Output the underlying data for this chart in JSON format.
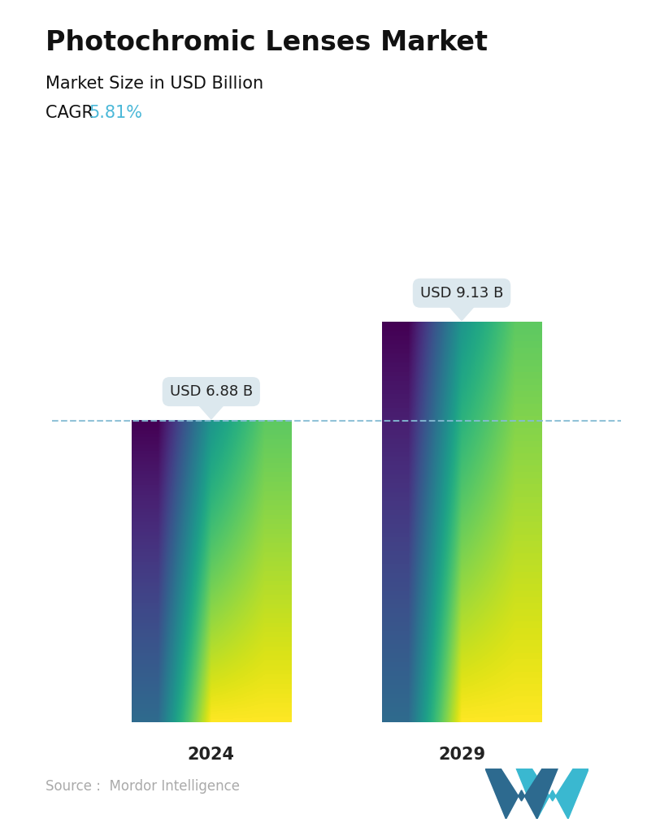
{
  "title": "Photochromic Lenses Market",
  "subtitle": "Market Size in USD Billion",
  "cagr_label": "CAGR ",
  "cagr_value": "5.81%",
  "cagr_color": "#4ab8d8",
  "categories": [
    "2024",
    "2029"
  ],
  "values": [
    6.88,
    9.13
  ],
  "bar_labels": [
    "USD 6.88 B",
    "USD 9.13 B"
  ],
  "bar_top_color": "#4a8fad",
  "bar_bottom_color": "#78cece",
  "dashed_line_color": "#85bcd4",
  "dashed_line_value": 6.88,
  "source_text": "Source :  Mordor Intelligence",
  "source_color": "#aaaaaa",
  "bg_color": "#ffffff",
  "title_fontsize": 24,
  "subtitle_fontsize": 15,
  "cagr_fontsize": 15,
  "tick_fontsize": 15,
  "label_fontsize": 13,
  "source_fontsize": 12,
  "ylim_max": 11.5,
  "bar_width": 0.28,
  "x_positions": [
    0.28,
    0.72
  ],
  "tooltip_bg": "#dce8ee",
  "tooltip_pointer_color": "#dce8ee"
}
